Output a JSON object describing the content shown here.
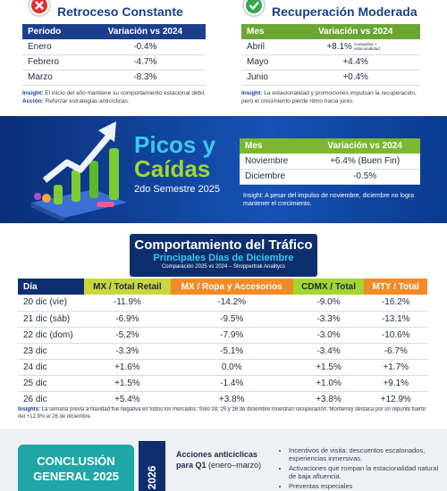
{
  "q1": {
    "title": "Retroceso Constante",
    "columns": [
      "Periodo",
      "Variación vs 2024"
    ],
    "rows": [
      [
        "Enero",
        "-0.4%"
      ],
      [
        "Febrero",
        "-4.7%"
      ],
      [
        "Marzo",
        "-8.3%"
      ]
    ],
    "insight_label": "Insight:",
    "insight": "El inicio del año mantiene su comportamiento estacional débil.",
    "action_label": "Acción:",
    "action": "Reforzar estrategias anticíclicas."
  },
  "q2": {
    "title": "Recuperación Moderada",
    "columns": [
      "Mes",
      "Variación vs 2024"
    ],
    "rows": [
      [
        "Abril",
        "+8.1%"
      ],
      [
        "Mayo",
        "+4.4%"
      ],
      [
        "Junio",
        "+0.4%"
      ]
    ],
    "note": "Campañas + estacionalidad.",
    "insight_label": "Insight:",
    "insight": "La estacionalidad y promociones impulsan la recuperación, pero el crecimiento pierde ritmo hacia junio."
  },
  "h2": {
    "title_1": "Picos y",
    "title_2": "Caídas",
    "subtitle": "2do Semestre 2025",
    "columns": [
      "Mes",
      "Variación vs 2024"
    ],
    "rows": [
      [
        "Noviembre",
        "+6.4% (Buen Fin)"
      ],
      [
        "Diciembre",
        "-0.5%"
      ]
    ],
    "insight_label": "Insight:",
    "insight": "A pesar del impulso de noviembre, diciembre no logra mantener el crecimiento."
  },
  "traffic": {
    "title": "Comportamiento del Tráfico",
    "subtitle": "Principales Días de Diciembre",
    "source": "Comparación 2025 vs 2024 – Shoppertrak Analitycs",
    "columns": [
      "Día",
      "MX / Total Retail",
      "MX / Ropa y Accesorios",
      "CDMX / Total",
      "MTY / Total"
    ],
    "rows": [
      [
        "20 dic (vie)",
        "-11.9%",
        "-14.2%",
        "-9.0%",
        "-16.2%"
      ],
      [
        "21 dic (sáb)",
        "-6.9%",
        "-9.5%",
        "-3.3%",
        "-13.1%"
      ],
      [
        "22 dic (dom)",
        "-5.2%",
        "-7.9%",
        "-3.0%",
        "-10.6%"
      ],
      [
        "23 dic",
        "-3.3%",
        "-5.1%",
        "-3.4%",
        "-6.7%"
      ],
      [
        "24 dic",
        "+1.6%",
        "0.0%",
        "+1.5%",
        "+1.7%"
      ],
      [
        "25 dic",
        "+1.5%",
        "-1.4%",
        "+1.0%",
        "+9.1%"
      ],
      [
        "26 dic",
        "+5.4%",
        "+3.8%",
        "+3.8%",
        "+12.9%"
      ]
    ],
    "insights_label": "Insights:",
    "insights": "La semana previa a Navidad fue negativa en todos los mercados. Solo 24, 25 y 26 de diciembre muestran recuperación. Monterrey destaca por un repunte fuerte del +12.9% el 26 de diciembre."
  },
  "conclusion": {
    "title": "CONCLUSIÓN GENERAL 2025",
    "year": "2026",
    "action_title": "Acciones anticíclicas para Q1",
    "action_period": "(enero–marzo)",
    "bullets": [
      "Incentivos de visita: descuentos escalonados, experiencias inmersivas.",
      "Activaciones que rompan la estacionalidad natural de baja afluencia.",
      "Preventas especiales"
    ]
  }
}
